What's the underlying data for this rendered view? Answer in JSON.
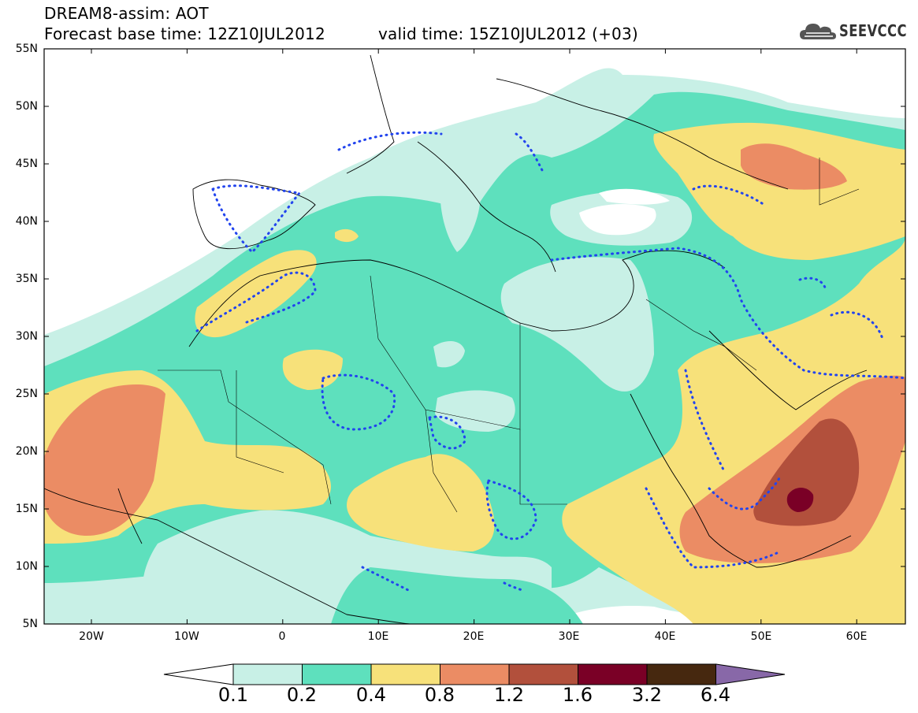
{
  "header": {
    "line1": "DREAM8-assim: AOT",
    "line2": "Forecast base time: 12Z10JUL2012",
    "line2b": "valid time: 15Z10JUL2012 (+03)",
    "logo_text": "SEEVCCC"
  },
  "axes": {
    "lat_labels": [
      "55N",
      "50N",
      "45N",
      "40N",
      "35N",
      "30N",
      "25N",
      "20N",
      "15N",
      "10N",
      "5N"
    ],
    "lon_labels": [
      "20W",
      "10W",
      "0",
      "10E",
      "20E",
      "30E",
      "40E",
      "50E",
      "60E"
    ]
  },
  "legend": {
    "labels": [
      "0.1",
      "0.2",
      "0.4",
      "0.8",
      "1.2",
      "1.6",
      "3.2",
      "6.4"
    ],
    "colors": [
      "#ffffff",
      "#c8f0e6",
      "#5ee0bd",
      "#f7e17a",
      "#eb8c64",
      "#b2503c",
      "#7a0026",
      "#46280f",
      "#8868a8"
    ]
  }
}
